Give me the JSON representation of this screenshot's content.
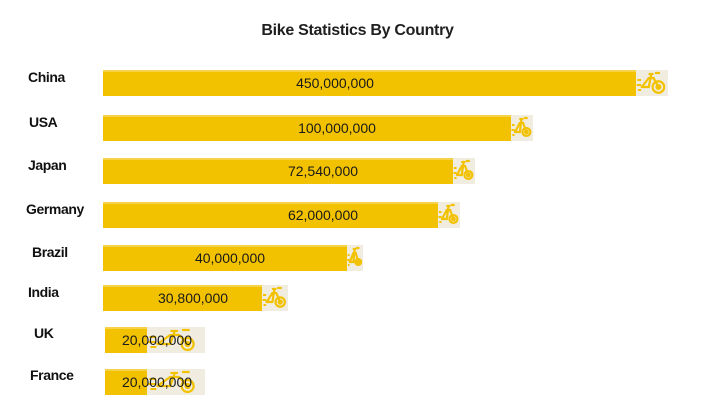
{
  "chart_data": {
    "type": "bar",
    "orientation": "horizontal",
    "title": "Bike Statistics By Country",
    "xlabel": "",
    "ylabel": "",
    "categories": [
      "China",
      "USA",
      "Japan",
      "Germany",
      "Brazil",
      "India",
      "UK",
      "France"
    ],
    "values": [
      450000000,
      100000000,
      72540000,
      62000000,
      40000000,
      30800000,
      20000000,
      20000000
    ],
    "value_labels": [
      "450,000,000",
      "100,000,000",
      "72,540,000",
      "62,000,000",
      "40,000,000",
      "30,800,000",
      "20,000,000",
      "20,000,000"
    ],
    "grid": false,
    "legend": "none",
    "bar_color": "#f2c200",
    "icon": "bicycle-icon"
  }
}
